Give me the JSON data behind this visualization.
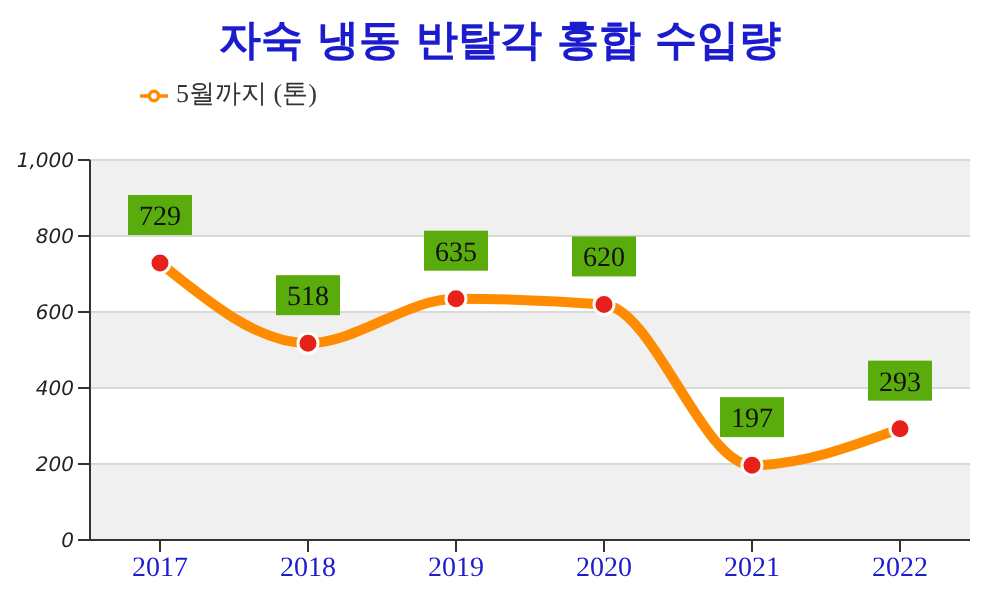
{
  "chart_data": {
    "type": "line",
    "title": "자숙 냉동 반탈각 홍합 수입량",
    "categories": [
      "2017",
      "2018",
      "2019",
      "2020",
      "2021",
      "2022"
    ],
    "series": [
      {
        "name": "5월까지 (톤)",
        "color": "#ff8c00",
        "values": [
          729,
          518,
          635,
          620,
          197,
          293
        ]
      }
    ],
    "ylim": [
      0,
      1000
    ],
    "yticks": [
      0,
      200,
      400,
      600,
      800,
      {
        "value": 1000,
        "label": "1,000"
      }
    ],
    "grid": "y",
    "legend": "top left",
    "marker": "circle",
    "line_style": "solid",
    "data_labels": true
  }
}
